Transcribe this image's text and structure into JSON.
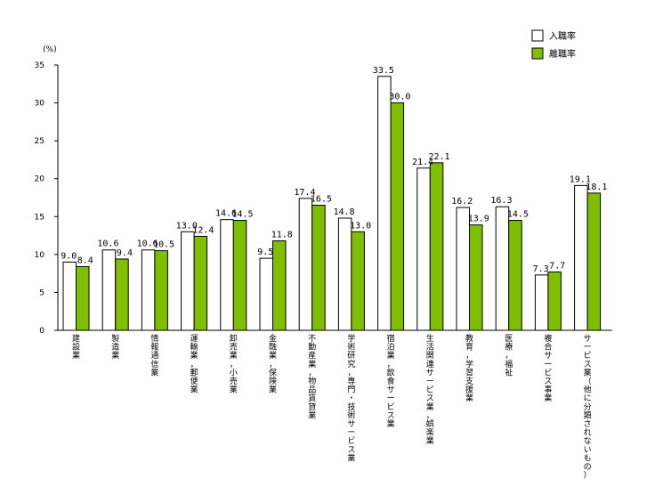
{
  "chart_data": {
    "type": "bar",
    "ylabel": "(%)",
    "ylim": [
      0,
      35
    ],
    "yticks": [
      0,
      5,
      10,
      15,
      20,
      25,
      30,
      35
    ],
    "grid": false,
    "legend_position": "top-right",
    "categories": [
      "建設業",
      "製造業",
      "情報通信業",
      "運輸業，郵便業",
      "卸売業，小売業",
      "金融業，保険業",
      "不動産業，物品賃貸業",
      "学術研究，専門・技術サービス業",
      "宿泊業，飲食サービス業",
      "生活関連サービス業，娯楽業",
      "教育，学習支援業",
      "医療，福祉",
      "複合サービス事業",
      "サービス業（他に分類されないもの）"
    ],
    "series": [
      {
        "name": "入職率",
        "color": "#ffffff",
        "values": [
          9.0,
          10.6,
          10.6,
          13.0,
          14.6,
          9.5,
          17.4,
          14.8,
          33.5,
          21.4,
          16.2,
          16.3,
          7.3,
          19.1
        ]
      },
      {
        "name": "離職率",
        "color": "#7fbf00",
        "values": [
          8.4,
          9.4,
          10.5,
          12.4,
          14.5,
          11.8,
          16.5,
          13.0,
          30.0,
          22.1,
          13.9,
          14.5,
          7.7,
          18.1
        ]
      }
    ]
  }
}
